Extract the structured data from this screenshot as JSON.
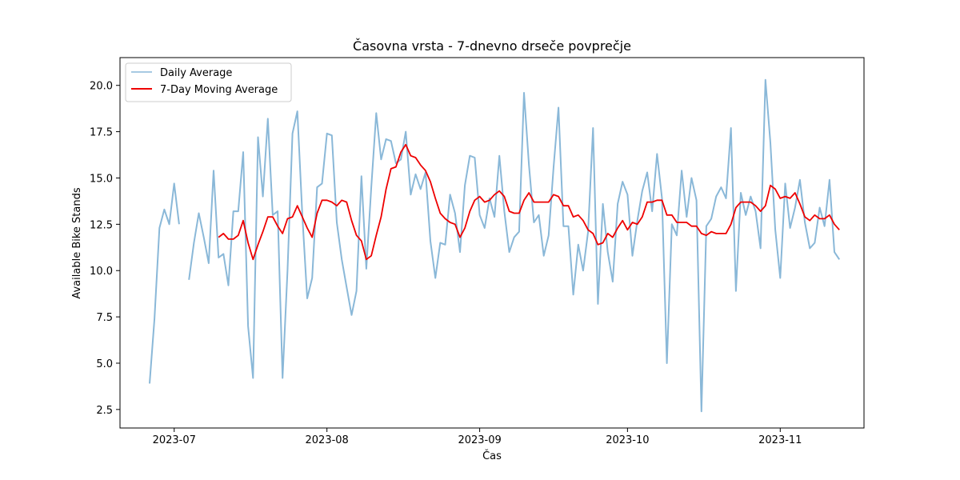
{
  "chart_data": {
    "type": "line",
    "title": "Časovna vrsta - 7-dnevno drseče povprečje",
    "xlabel": "Čas",
    "ylabel": "Available Bike Stands",
    "x_start": "2023-06-26",
    "xlim": [
      "2023-06-20",
      "2023-11-18"
    ],
    "ylim": [
      1.5,
      21.5
    ],
    "x_ticks": [
      {
        "date": "2023-07-01",
        "label": "2023-07"
      },
      {
        "date": "2023-08-01",
        "label": "2023-08"
      },
      {
        "date": "2023-09-01",
        "label": "2023-09"
      },
      {
        "date": "2023-10-01",
        "label": "2023-10"
      },
      {
        "date": "2023-11-01",
        "label": "2023-11"
      }
    ],
    "y_ticks": [
      2.5,
      5.0,
      7.5,
      10.0,
      12.5,
      15.0,
      17.5,
      20.0
    ],
    "legend": {
      "position": "top-left"
    },
    "grid": false,
    "series": [
      {
        "name": "Daily Average",
        "color": "#8ab8d8",
        "values": [
          3.9,
          7.4,
          12.3,
          13.3,
          12.5,
          14.7,
          12.5,
          null,
          9.5,
          11.5,
          13.1,
          11.8,
          10.4,
          15.4,
          10.7,
          10.9,
          9.2,
          13.2,
          13.2,
          16.4,
          7.0,
          4.2,
          17.2,
          14.0,
          18.2,
          13.0,
          13.2,
          4.2,
          10.0,
          17.4,
          18.6,
          13.0,
          8.5,
          9.6,
          14.5,
          14.7,
          17.4,
          17.3,
          12.6,
          10.6,
          9.1,
          7.6,
          8.9,
          15.1,
          10.1,
          14.5,
          18.5,
          16.0,
          17.1,
          17.0,
          15.8,
          16.0,
          17.5,
          14.1,
          15.2,
          14.4,
          15.3,
          11.6,
          9.6,
          11.5,
          11.4,
          14.1,
          13.1,
          11.0,
          14.6,
          16.2,
          16.1,
          13.0,
          12.3,
          13.9,
          12.9,
          16.2,
          13.2,
          11.0,
          11.8,
          12.1,
          19.6,
          15.7,
          12.6,
          13.0,
          10.8,
          11.9,
          15.6,
          18.8,
          12.4,
          12.4,
          8.7,
          11.4,
          10.0,
          12.1,
          17.7,
          8.2,
          13.6,
          11.0,
          9.4,
          13.6,
          14.8,
          14.1,
          10.8,
          12.7,
          14.3,
          15.3,
          13.2,
          16.3,
          13.9,
          5.0,
          12.5,
          11.9,
          15.4,
          12.9,
          15.0,
          13.8,
          2.4,
          12.4,
          12.8,
          14.0,
          14.5,
          13.9,
          17.7,
          8.9,
          14.2,
          13.0,
          14.0,
          13.2,
          11.2,
          20.3,
          16.9,
          12.2,
          9.6,
          14.7,
          12.3,
          13.4,
          14.9,
          12.6,
          11.2,
          11.5,
          13.4,
          12.4,
          14.9,
          11.0,
          10.6
        ]
      },
      {
        "name": "7-Day Moving Average",
        "color": "#ee0000",
        "values": [
          null,
          null,
          null,
          null,
          null,
          null,
          null,
          null,
          null,
          null,
          null,
          null,
          null,
          null,
          11.8,
          12.0,
          11.7,
          11.7,
          11.9,
          12.7,
          11.5,
          10.6,
          11.4,
          12.1,
          12.9,
          12.9,
          12.4,
          12.0,
          12.8,
          12.9,
          13.5,
          12.9,
          12.3,
          11.8,
          13.1,
          13.8,
          13.8,
          13.7,
          13.5,
          13.8,
          13.7,
          12.7,
          11.9,
          11.6,
          10.6,
          10.8,
          11.9,
          12.9,
          14.4,
          15.5,
          15.6,
          16.4,
          16.8,
          16.2,
          16.1,
          15.7,
          15.4,
          14.8,
          13.9,
          13.1,
          12.8,
          12.6,
          12.5,
          11.8,
          12.3,
          13.2,
          13.8,
          14.0,
          13.7,
          13.8,
          14.1,
          14.3,
          14.0,
          13.2,
          13.1,
          13.1,
          13.8,
          14.2,
          13.7,
          13.7,
          13.7,
          13.7,
          14.1,
          14.0,
          13.5,
          13.5,
          12.9,
          13.0,
          12.7,
          12.2,
          12.0,
          11.4,
          11.5,
          12.0,
          11.8,
          12.3,
          12.7,
          12.2,
          12.6,
          12.5,
          12.9,
          13.7,
          13.7,
          13.8,
          13.8,
          13.0,
          13.0,
          12.6,
          12.6,
          12.6,
          12.4,
          12.4,
          12.0,
          11.9,
          12.1,
          12.0,
          12.0,
          12.0,
          12.5,
          13.4,
          13.7,
          13.7,
          13.7,
          13.5,
          13.2,
          13.5,
          14.6,
          14.4,
          13.9,
          14.0,
          13.9,
          14.2,
          13.6,
          12.9,
          12.7,
          13.0,
          12.8,
          12.8,
          13.0,
          12.5,
          12.2
        ]
      }
    ]
  }
}
